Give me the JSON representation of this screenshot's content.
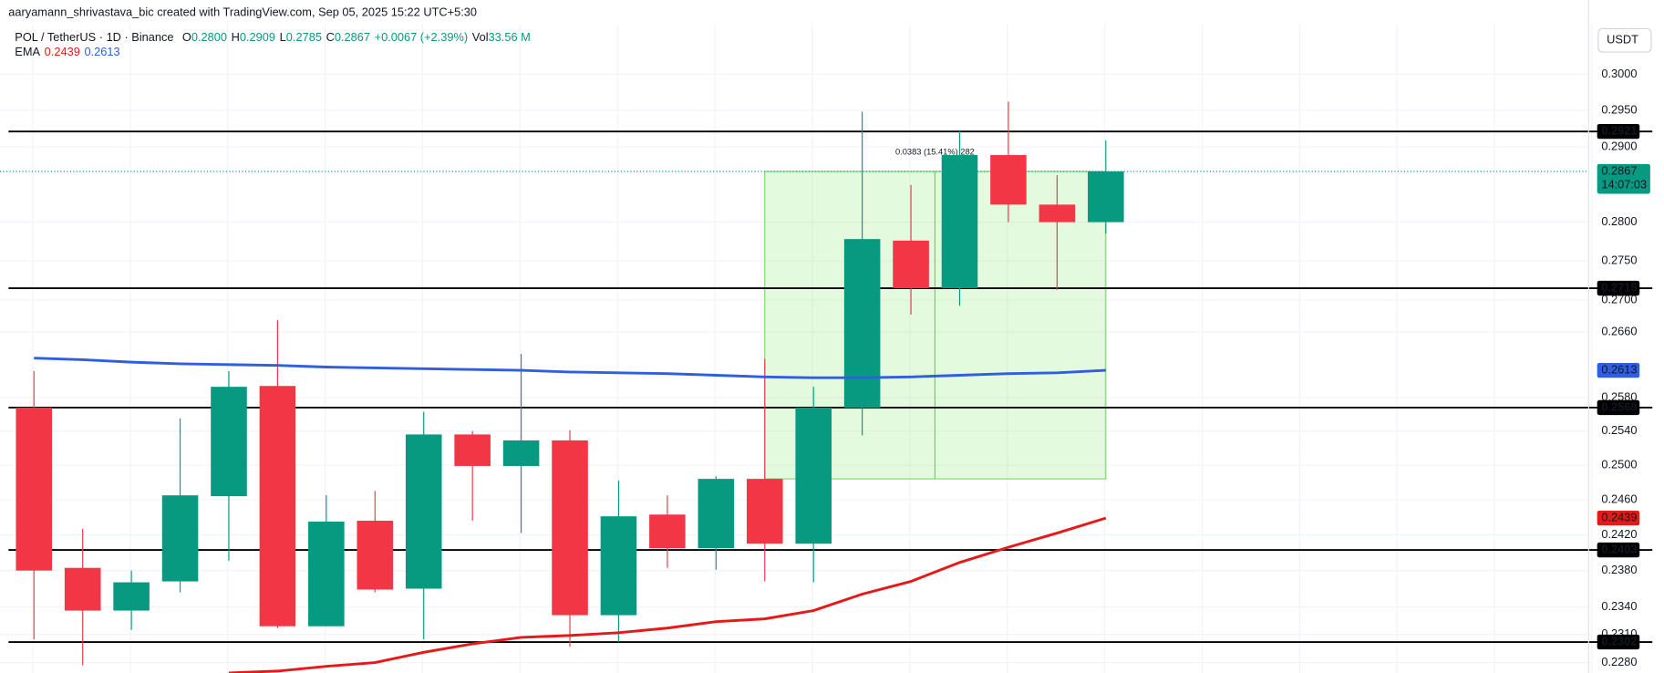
{
  "header": {
    "credit": "aaryamann_shrivastava_bic created with TradingView.com, Sep 05, 2025 15:22 UTC+5:30",
    "symbol": "POL / TetherUS · 1D · Binance",
    "ohlc": [
      {
        "key": "O",
        "value": "0.2800"
      },
      {
        "key": "H",
        "value": "0.2909"
      },
      {
        "key": "L",
        "value": "0.2785"
      },
      {
        "key": "C",
        "value": "0.2867"
      }
    ],
    "change": "+0.0067 (+2.39%)",
    "vol_key": "Vol",
    "vol": "33.56 M",
    "ema_label": "EMA",
    "ema_values": [
      "0.2439",
      "0.2613"
    ],
    "currency": "USDT"
  },
  "chart_data": {
    "type": "candlestick",
    "log_scale": true,
    "grid": true,
    "up_color": "#089981",
    "down_color": "#f23645",
    "ylim": [
      0.2269,
      0.3072
    ],
    "yticks": [
      {
        "value": 0.3,
        "label": "0.3000"
      },
      {
        "value": 0.295,
        "label": "0.2950"
      },
      {
        "value": 0.29,
        "label": "0.2900"
      },
      {
        "value": 0.28,
        "label": "0.2800"
      },
      {
        "value": 0.275,
        "label": "0.2750"
      },
      {
        "value": 0.27,
        "label": "0.2700"
      },
      {
        "value": 0.266,
        "label": "0.2660"
      },
      {
        "value": 0.258,
        "label": "0.2580"
      },
      {
        "value": 0.254,
        "label": "0.2540"
      },
      {
        "value": 0.25,
        "label": "0.2500"
      },
      {
        "value": 0.246,
        "label": "0.2460"
      },
      {
        "value": 0.242,
        "label": "0.2420"
      },
      {
        "value": 0.238,
        "label": "0.2380"
      },
      {
        "value": 0.234,
        "label": "0.2340"
      },
      {
        "value": 0.231,
        "label": "0.2310"
      },
      {
        "value": 0.228,
        "label": "0.2280"
      }
    ],
    "candles": [
      {
        "open": 0.2568,
        "high": 0.2612,
        "low": 0.2305,
        "close": 0.238
      },
      {
        "open": 0.2383,
        "high": 0.2427,
        "low": 0.2277,
        "close": 0.2336
      },
      {
        "open": 0.2336,
        "high": 0.238,
        "low": 0.2315,
        "close": 0.2367
      },
      {
        "open": 0.2368,
        "high": 0.2555,
        "low": 0.2356,
        "close": 0.2465
      },
      {
        "open": 0.2464,
        "high": 0.2612,
        "low": 0.2391,
        "close": 0.2593
      },
      {
        "open": 0.2594,
        "high": 0.2675,
        "low": 0.2317,
        "close": 0.2319
      },
      {
        "open": 0.2319,
        "high": 0.2465,
        "low": 0.2319,
        "close": 0.2435
      },
      {
        "open": 0.2436,
        "high": 0.247,
        "low": 0.2356,
        "close": 0.2359
      },
      {
        "open": 0.236,
        "high": 0.2563,
        "low": 0.2305,
        "close": 0.2536
      },
      {
        "open": 0.2536,
        "high": 0.254,
        "low": 0.2436,
        "close": 0.2499
      },
      {
        "open": 0.2499,
        "high": 0.2633,
        "low": 0.2422,
        "close": 0.2529
      },
      {
        "open": 0.2529,
        "high": 0.2541,
        "low": 0.2297,
        "close": 0.2331
      },
      {
        "open": 0.2331,
        "high": 0.2482,
        "low": 0.2302,
        "close": 0.2441
      },
      {
        "open": 0.2443,
        "high": 0.2465,
        "low": 0.2383,
        "close": 0.2405
      },
      {
        "open": 0.2405,
        "high": 0.2487,
        "low": 0.2381,
        "close": 0.2484
      },
      {
        "open": 0.2484,
        "high": 0.2627,
        "low": 0.2368,
        "close": 0.241
      },
      {
        "open": 0.241,
        "high": 0.2593,
        "low": 0.2367,
        "close": 0.2568
      },
      {
        "open": 0.2568,
        "high": 0.2948,
        "low": 0.2535,
        "close": 0.2778
      },
      {
        "open": 0.2776,
        "high": 0.2849,
        "low": 0.2682,
        "close": 0.2715
      },
      {
        "open": 0.2715,
        "high": 0.2921,
        "low": 0.2693,
        "close": 0.2889
      },
      {
        "open": 0.2889,
        "high": 0.2962,
        "low": 0.28,
        "close": 0.2823
      },
      {
        "open": 0.2823,
        "high": 0.2862,
        "low": 0.2713,
        "close": 0.28
      },
      {
        "open": 0.28,
        "high": 0.2909,
        "low": 0.2785,
        "close": 0.2867
      }
    ],
    "series": [
      {
        "name": "EMA",
        "color": "#2f5fe0",
        "values": [
          0.2628,
          0.2626,
          0.2623,
          0.2621,
          0.262,
          0.2619,
          0.2617,
          0.2616,
          0.2615,
          0.2614,
          0.2613,
          0.2611,
          0.261,
          0.2609,
          0.2607,
          0.2605,
          0.2604,
          0.2604,
          0.2605,
          0.2607,
          0.2609,
          0.261,
          0.2613
        ]
      },
      {
        "name": "EMA",
        "color": "#e61919",
        "values": [
          null,
          null,
          null,
          null,
          0.2269,
          0.2271,
          0.2276,
          0.228,
          0.2291,
          0.23,
          0.2307,
          0.2309,
          0.2312,
          0.2317,
          0.2324,
          0.2327,
          0.2336,
          0.2354,
          0.2368,
          0.2389,
          0.2406,
          0.2422,
          0.2439
        ]
      }
    ],
    "levels": [
      0.2921,
      0.2715,
      0.2568,
      0.2403,
      0.2302
    ],
    "last_price": 0.2867,
    "countdown": "14:07:03",
    "measure_label": "0.0383 (15.41%) 282"
  }
}
